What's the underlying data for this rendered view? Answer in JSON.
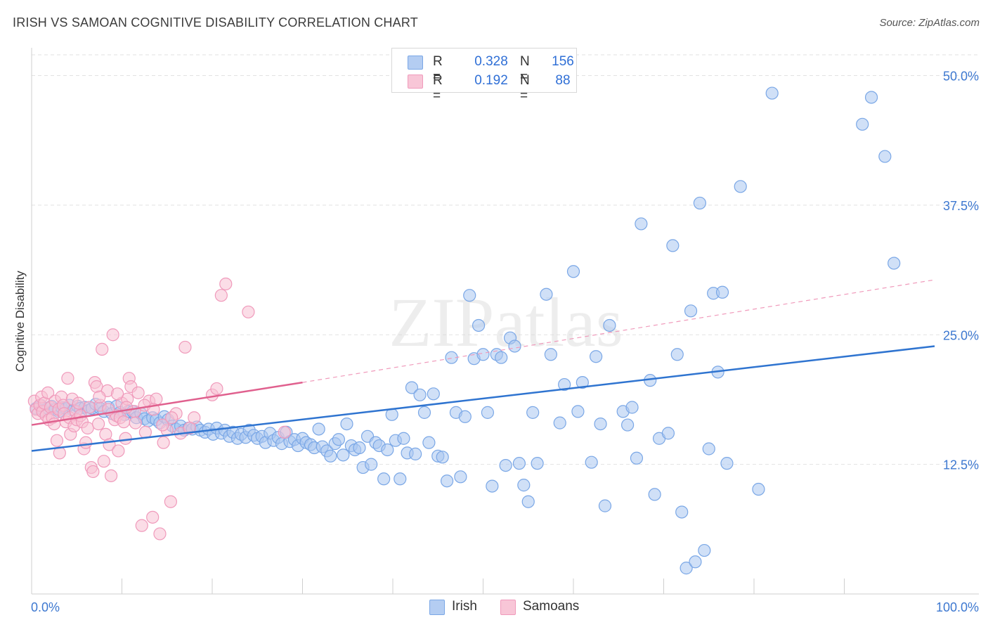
{
  "chart_data": {
    "type": "scatter",
    "title": "IRISH VS SAMOAN COGNITIVE DISABILITY CORRELATION CHART",
    "source": "Source: ZipAtlas.com",
    "watermark": "ZIPatlas",
    "xlabel": "",
    "ylabel": "Cognitive Disability",
    "xlim": [
      0,
      100
    ],
    "ylim": [
      0,
      52
    ],
    "x_tick_labels": [
      "0.0%",
      "100.0%"
    ],
    "y_ticks": [
      12.5,
      25.0,
      37.5,
      50.0
    ],
    "y_tick_labels": [
      "12.5%",
      "25.0%",
      "37.5%",
      "50.0%"
    ],
    "grid": "horizontal-dashed",
    "legend_position": "top-center",
    "stats": [
      {
        "name": "Irish",
        "r_label": "R =",
        "r": "0.328",
        "n_label": "N =",
        "n": "156"
      },
      {
        "name": "Samoans",
        "r_label": "R =",
        "r": "0.192",
        "n_label": "N =",
        "n": "88"
      }
    ],
    "series": [
      {
        "name": "Irish",
        "color": "#7aa7e6",
        "fill": "#a9c6f0",
        "line_color": "#2f74d0",
        "trend": {
          "x": [
            0,
            100
          ],
          "y": [
            13.8,
            23.9
          ],
          "dashed_extension": false
        },
        "points": [
          [
            0.5,
            17.9
          ],
          [
            1.0,
            18.2
          ],
          [
            1.3,
            17.7
          ],
          [
            1.8,
            17.9
          ],
          [
            2.2,
            18.1
          ],
          [
            2.6,
            17.8
          ],
          [
            3.0,
            17.6
          ],
          [
            3.3,
            18.0
          ],
          [
            3.8,
            17.9
          ],
          [
            4.2,
            18.2
          ],
          [
            4.6,
            17.7
          ],
          [
            5.1,
            18.1
          ],
          [
            5.4,
            17.9
          ],
          [
            5.9,
            18.0
          ],
          [
            6.3,
            17.7
          ],
          [
            6.7,
            17.9
          ],
          [
            7.1,
            18.3
          ],
          [
            7.6,
            17.9
          ],
          [
            8.0,
            17.6
          ],
          [
            8.5,
            18.0
          ],
          [
            8.9,
            17.4
          ],
          [
            9.4,
            18.1
          ],
          [
            9.8,
            17.5
          ],
          [
            10.3,
            17.3
          ],
          [
            10.7,
            17.6
          ],
          [
            11.2,
            17.6
          ],
          [
            11.6,
            17.0
          ],
          [
            12.1,
            17.4
          ],
          [
            12.5,
            16.9
          ],
          [
            12.9,
            16.7
          ],
          [
            13.4,
            17.0
          ],
          [
            13.8,
            16.8
          ],
          [
            14.2,
            16.5
          ],
          [
            14.7,
            17.1
          ],
          [
            15.1,
            16.8
          ],
          [
            15.6,
            16.2
          ],
          [
            16.0,
            15.9
          ],
          [
            16.5,
            16.2
          ],
          [
            16.9,
            15.8
          ],
          [
            17.4,
            16.0
          ],
          [
            17.8,
            15.9
          ],
          [
            18.3,
            16.1
          ],
          [
            18.7,
            15.8
          ],
          [
            19.2,
            15.6
          ],
          [
            19.6,
            15.9
          ],
          [
            20.1,
            15.4
          ],
          [
            20.5,
            16.0
          ],
          [
            21.0,
            15.5
          ],
          [
            21.4,
            15.8
          ],
          [
            21.9,
            15.2
          ],
          [
            22.3,
            15.6
          ],
          [
            22.8,
            15.0
          ],
          [
            23.2,
            15.4
          ],
          [
            23.7,
            15.1
          ],
          [
            24.1,
            15.8
          ],
          [
            24.6,
            15.3
          ],
          [
            25.0,
            15.0
          ],
          [
            25.5,
            15.2
          ],
          [
            25.9,
            14.6
          ],
          [
            26.4,
            15.5
          ],
          [
            26.8,
            14.8
          ],
          [
            27.3,
            15.1
          ],
          [
            27.7,
            14.5
          ],
          [
            28.2,
            15.6
          ],
          [
            28.6,
            14.7
          ],
          [
            29.1,
            14.9
          ],
          [
            29.5,
            14.3
          ],
          [
            30.0,
            15.0
          ],
          [
            30.4,
            14.6
          ],
          [
            30.9,
            14.4
          ],
          [
            31.3,
            14.1
          ],
          [
            31.8,
            15.9
          ],
          [
            32.2,
            14.2
          ],
          [
            32.7,
            13.8
          ],
          [
            33.1,
            13.3
          ],
          [
            33.6,
            14.5
          ],
          [
            34.0,
            14.9
          ],
          [
            34.5,
            13.4
          ],
          [
            34.9,
            16.4
          ],
          [
            35.4,
            14.3
          ],
          [
            35.8,
            13.9
          ],
          [
            36.3,
            14.1
          ],
          [
            36.7,
            12.2
          ],
          [
            37.2,
            15.2
          ],
          [
            37.6,
            12.5
          ],
          [
            38.1,
            14.6
          ],
          [
            38.5,
            14.3
          ],
          [
            39.0,
            11.1
          ],
          [
            39.4,
            13.9
          ],
          [
            39.9,
            17.3
          ],
          [
            40.3,
            14.8
          ],
          [
            40.8,
            11.1
          ],
          [
            41.2,
            15.0
          ],
          [
            41.6,
            13.6
          ],
          [
            42.1,
            19.9
          ],
          [
            42.5,
            13.5
          ],
          [
            43.0,
            19.2
          ],
          [
            43.5,
            17.5
          ],
          [
            44.0,
            14.6
          ],
          [
            44.5,
            19.3
          ],
          [
            45.0,
            13.3
          ],
          [
            45.5,
            13.2
          ],
          [
            46.0,
            10.9
          ],
          [
            46.5,
            22.8
          ],
          [
            47.0,
            17.5
          ],
          [
            47.5,
            11.3
          ],
          [
            48.0,
            17.1
          ],
          [
            48.5,
            28.8
          ],
          [
            49.0,
            22.7
          ],
          [
            49.5,
            25.9
          ],
          [
            50.0,
            23.1
          ],
          [
            50.5,
            17.5
          ],
          [
            51.0,
            10.4
          ],
          [
            51.5,
            23.1
          ],
          [
            52.0,
            22.8
          ],
          [
            52.5,
            12.4
          ],
          [
            53.0,
            24.7
          ],
          [
            53.5,
            23.9
          ],
          [
            54.0,
            12.6
          ],
          [
            54.5,
            10.5
          ],
          [
            55.0,
            8.9
          ],
          [
            55.5,
            17.5
          ],
          [
            56.0,
            12.6
          ],
          [
            57.0,
            28.9
          ],
          [
            57.5,
            23.1
          ],
          [
            58.5,
            16.5
          ],
          [
            59.0,
            20.2
          ],
          [
            60.0,
            31.1
          ],
          [
            60.5,
            17.6
          ],
          [
            61.0,
            20.4
          ],
          [
            62.0,
            12.7
          ],
          [
            62.5,
            22.9
          ],
          [
            63.0,
            16.4
          ],
          [
            63.5,
            8.5
          ],
          [
            64.0,
            25.9
          ],
          [
            65.5,
            17.6
          ],
          [
            66.0,
            16.3
          ],
          [
            66.5,
            18.0
          ],
          [
            67.0,
            13.1
          ],
          [
            67.5,
            35.7
          ],
          [
            68.5,
            20.6
          ],
          [
            69.0,
            9.6
          ],
          [
            69.5,
            15.0
          ],
          [
            70.5,
            15.5
          ],
          [
            71.0,
            33.6
          ],
          [
            71.5,
            23.1
          ],
          [
            72.0,
            7.9
          ],
          [
            72.5,
            2.5
          ],
          [
            73.0,
            27.3
          ],
          [
            73.5,
            3.1
          ],
          [
            74.0,
            37.7
          ],
          [
            74.5,
            4.2
          ],
          [
            75.0,
            14.0
          ],
          [
            75.5,
            29.0
          ],
          [
            76.0,
            21.4
          ],
          [
            76.5,
            29.1
          ],
          [
            77.0,
            12.6
          ],
          [
            78.5,
            39.3
          ],
          [
            80.5,
            10.1
          ],
          [
            82.0,
            48.3
          ],
          [
            92.0,
            45.3
          ],
          [
            93.0,
            47.9
          ],
          [
            94.5,
            42.2
          ],
          [
            95.5,
            31.9
          ]
        ]
      },
      {
        "name": "Samoans",
        "color": "#f09abb",
        "fill": "#f7c1d4",
        "line_color": "#e0608e",
        "trend": {
          "x": [
            0,
            30
          ],
          "y": [
            16.3,
            20.4
          ],
          "dashed_extension": true,
          "extension_to": [
            100,
            30.3
          ]
        },
        "points": [
          [
            0.3,
            18.6
          ],
          [
            0.5,
            17.8
          ],
          [
            0.7,
            17.4
          ],
          [
            0.9,
            18.2
          ],
          [
            1.1,
            19.0
          ],
          [
            1.2,
            17.6
          ],
          [
            1.4,
            18.4
          ],
          [
            1.6,
            17.2
          ],
          [
            1.8,
            19.4
          ],
          [
            1.9,
            16.8
          ],
          [
            2.1,
            18.0
          ],
          [
            2.3,
            17.0
          ],
          [
            2.5,
            16.4
          ],
          [
            2.6,
            18.6
          ],
          [
            2.8,
            14.8
          ],
          [
            3.0,
            17.8
          ],
          [
            3.1,
            13.6
          ],
          [
            3.3,
            19.0
          ],
          [
            3.5,
            18.2
          ],
          [
            3.6,
            17.4
          ],
          [
            3.8,
            16.6
          ],
          [
            4.0,
            20.8
          ],
          [
            4.2,
            17.0
          ],
          [
            4.3,
            15.4
          ],
          [
            4.5,
            18.8
          ],
          [
            4.7,
            16.2
          ],
          [
            4.9,
            17.6
          ],
          [
            5.0,
            16.8
          ],
          [
            5.2,
            18.4
          ],
          [
            5.4,
            17.2
          ],
          [
            5.6,
            16.6
          ],
          [
            5.8,
            14.0
          ],
          [
            6.0,
            14.6
          ],
          [
            6.2,
            16.0
          ],
          [
            6.4,
            18.0
          ],
          [
            6.6,
            12.2
          ],
          [
            6.8,
            11.8
          ],
          [
            7.0,
            20.4
          ],
          [
            7.2,
            20.0
          ],
          [
            7.4,
            16.4
          ],
          [
            7.6,
            18.2
          ],
          [
            7.8,
            23.6
          ],
          [
            8.0,
            12.8
          ],
          [
            8.2,
            15.4
          ],
          [
            8.4,
            19.6
          ],
          [
            8.6,
            14.4
          ],
          [
            8.8,
            11.4
          ],
          [
            9.0,
            25.0
          ],
          [
            9.2,
            16.8
          ],
          [
            9.4,
            17.2
          ],
          [
            9.6,
            13.8
          ],
          [
            9.8,
            17.0
          ],
          [
            10.0,
            18.4
          ],
          [
            10.2,
            16.6
          ],
          [
            10.4,
            15.0
          ],
          [
            10.6,
            18.8
          ],
          [
            10.8,
            20.8
          ],
          [
            11.0,
            20.0
          ],
          [
            11.4,
            17.6
          ],
          [
            11.8,
            19.4
          ],
          [
            12.2,
            6.6
          ],
          [
            12.6,
            15.6
          ],
          [
            13.0,
            18.6
          ],
          [
            13.4,
            7.4
          ],
          [
            13.8,
            18.8
          ],
          [
            14.2,
            5.8
          ],
          [
            14.6,
            14.6
          ],
          [
            15.0,
            15.8
          ],
          [
            15.4,
            8.9
          ],
          [
            16.0,
            17.4
          ],
          [
            17.0,
            23.8
          ],
          [
            18.0,
            17.0
          ],
          [
            20.0,
            19.2
          ],
          [
            20.5,
            19.8
          ],
          [
            21.0,
            28.8
          ],
          [
            21.5,
            29.9
          ],
          [
            24.0,
            27.2
          ],
          [
            28.0,
            15.6
          ],
          [
            7.5,
            19.0
          ],
          [
            8.5,
            17.8
          ],
          [
            9.5,
            19.3
          ],
          [
            10.5,
            18.0
          ],
          [
            11.5,
            16.5
          ],
          [
            12.5,
            18.2
          ],
          [
            13.5,
            17.8
          ],
          [
            14.5,
            16.3
          ],
          [
            15.5,
            17.0
          ],
          [
            16.5,
            15.5
          ],
          [
            17.5,
            16.0
          ]
        ]
      }
    ]
  }
}
